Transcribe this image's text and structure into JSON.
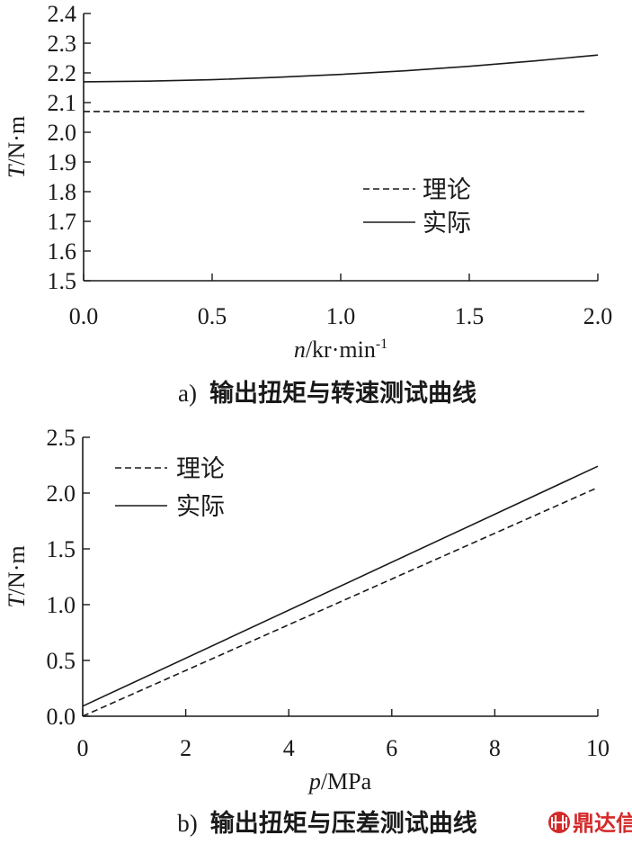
{
  "chart_data": [
    {
      "type": "line",
      "caption_letter": "a)",
      "caption": "输出扭矩与转速测试曲线",
      "xlabel_var": "n",
      "xlabel_unit": "/kr·min",
      "xlabel_sup": "-1",
      "ylabel_var": "T",
      "ylabel_unit": "/N·m",
      "xlim": [
        0.0,
        2.0
      ],
      "ylim": [
        1.5,
        2.4
      ],
      "xticks": [
        "0.0",
        "0.5",
        "1.0",
        "1.5",
        "2.0"
      ],
      "yticks": [
        "1.5",
        "1.6",
        "1.7",
        "1.8",
        "1.9",
        "2.0",
        "2.1",
        "2.2",
        "2.3",
        "2.4"
      ],
      "legend_position": "center-right",
      "series": [
        {
          "name": "理论",
          "style": "dashed",
          "x": [
            0.0,
            1.95
          ],
          "y": [
            2.07,
            2.07
          ]
        },
        {
          "name": "实际",
          "style": "solid",
          "x": [
            0.0,
            0.25,
            0.5,
            0.75,
            1.0,
            1.25,
            1.5,
            1.75,
            2.0
          ],
          "y": [
            2.17,
            2.172,
            2.177,
            2.185,
            2.195,
            2.207,
            2.222,
            2.24,
            2.26
          ]
        }
      ]
    },
    {
      "type": "line",
      "caption_letter": "b)",
      "caption": "输出扭矩与压差测试曲线",
      "xlabel_var": "p",
      "xlabel_unit": "/MPa",
      "xlabel_sup": "",
      "ylabel_var": "T",
      "ylabel_unit": "/N·m",
      "xlim": [
        0,
        10
      ],
      "ylim": [
        0.0,
        2.5
      ],
      "xticks": [
        "0",
        "2",
        "4",
        "6",
        "8",
        "10"
      ],
      "yticks": [
        "0.0",
        "0.5",
        "1.0",
        "1.5",
        "2.0",
        "2.5"
      ],
      "legend_position": "top-left",
      "series": [
        {
          "name": "理论",
          "style": "dashed",
          "x": [
            0,
            10
          ],
          "y": [
            0.0,
            2.05
          ]
        },
        {
          "name": "实际",
          "style": "solid",
          "x": [
            0,
            10
          ],
          "y": [
            0.09,
            2.24
          ]
        }
      ]
    }
  ],
  "watermark": {
    "text": "鼎达信",
    "icon": "logo-icon"
  },
  "colors": {
    "ink": "#1a1a1a",
    "watermark": "#d42a2a"
  }
}
